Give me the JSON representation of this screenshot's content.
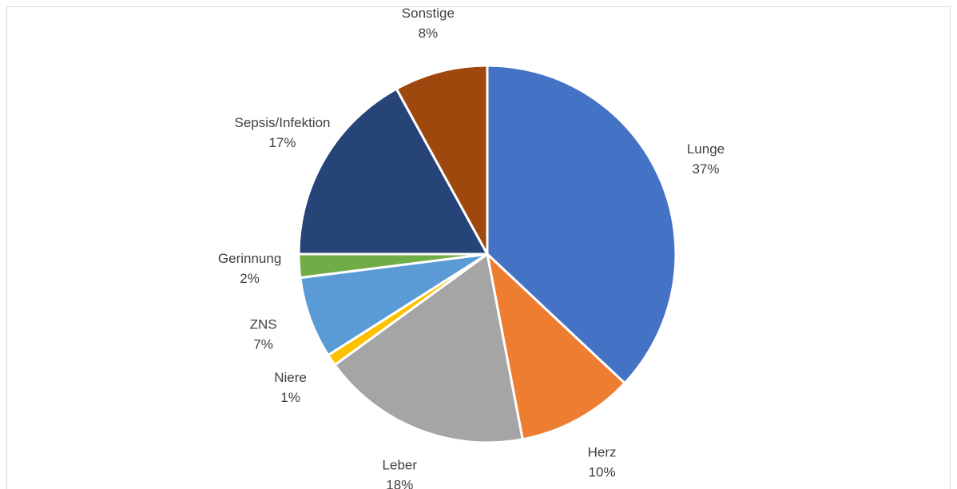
{
  "chart_data": {
    "type": "pie",
    "categories": [
      "Lunge",
      "Herz",
      "Leber",
      "Niere",
      "ZNS",
      "Gerinnung",
      "Sepsis/Infektion",
      "Sonstige"
    ],
    "values": [
      37,
      10,
      18,
      1,
      7,
      2,
      17,
      8
    ],
    "value_labels": [
      "37%",
      "10%",
      "18%",
      "1%",
      "7%",
      "2%",
      "17%",
      "8%"
    ],
    "colors": [
      "#4472c4",
      "#ed7d31",
      "#a5a5a5",
      "#ffc000",
      "#5b9bd5",
      "#70ad47",
      "#264478",
      "#9e480e"
    ]
  }
}
